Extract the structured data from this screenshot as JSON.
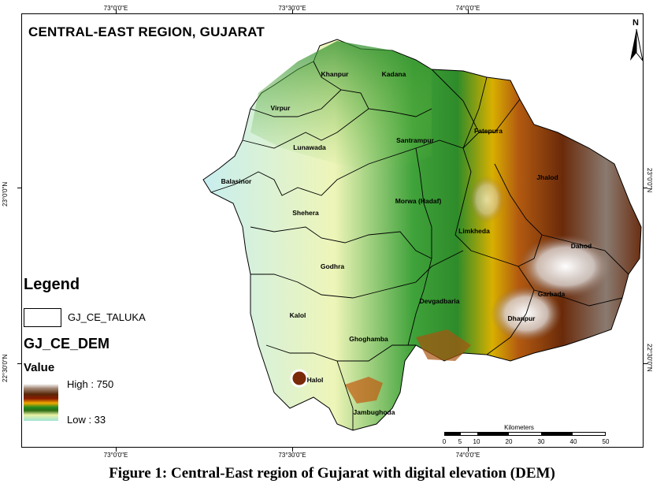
{
  "map": {
    "title": "CENTRAL-EAST REGION, GUJARAT",
    "north_label": "N",
    "longitude_ticks": [
      "73°0'0\"E",
      "73°30'0\"E",
      "74°0'0\"E"
    ],
    "latitude_ticks": [
      "23°0'0\"N",
      "22°30'0\"N"
    ],
    "talukas": [
      "Khanpur",
      "Kadana",
      "Virpur",
      "Fatepura",
      "Santrampur",
      "Lunawada",
      "Balasinor",
      "Jhalod",
      "Morwa (Hadaf)",
      "Shehera",
      "Limkheda",
      "Dahod",
      "Godhra",
      "Garbada",
      "Devgadbaria",
      "Kalol",
      "Dhanpur",
      "Ghoghamba",
      "Halol",
      "Jambughoda"
    ],
    "colors": {
      "high": "#5a2708",
      "peak": "#ffffff",
      "mid": "#1f8a1f",
      "low": "#9fe3d6",
      "orange": "#f2a900"
    }
  },
  "legend": {
    "title": "Legend",
    "boundary_label": "GJ_CE_TALUKA",
    "dem_title": "GJ_CE_DEM",
    "value_title": "Value",
    "high_label": "High : 750",
    "low_label": "Low :  33"
  },
  "scale": {
    "title": "Kilometers",
    "labels": [
      "0",
      "5",
      "10",
      "20",
      "30",
      "40",
      "50"
    ]
  },
  "caption": "Figure 1: Central-East region of Gujarat with digital elevation (DEM)"
}
